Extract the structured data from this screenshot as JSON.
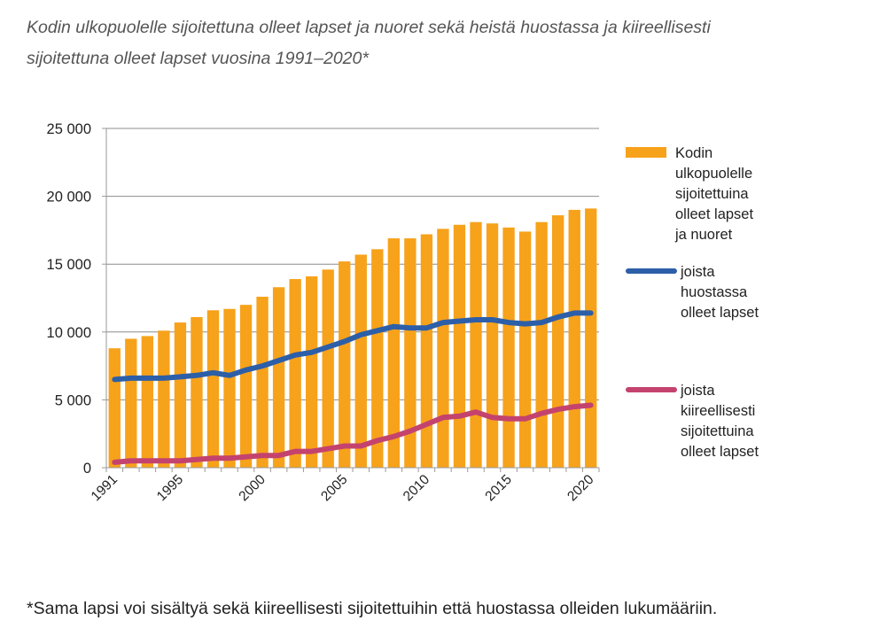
{
  "title_line1": "Kodin ulkopuolelle sijoitettuna olleet lapset ja nuoret sekä heistä huostassa ja kiireellisesti",
  "title_line2": "sijoitettuna olleet lapset vuosina 1991–2020*",
  "footnote": "*Sama lapsi voi sisältyä sekä kiireellisesti sijoitettuihin että huostassa olleiden lukumääriin.",
  "colors": {
    "bar": "#F7A21B",
    "line_custody": "#2D5FA8",
    "line_emergency": "#C4436E",
    "grid": "#8C8C8C",
    "axis": "#9A9A9A"
  },
  "chart_data": {
    "type": "bar",
    "ylim": [
      0,
      25000
    ],
    "yticks": [
      0,
      5000,
      10000,
      15000,
      20000,
      25000
    ],
    "ytick_labels": [
      "0",
      "5 000",
      "10 000",
      "15 000",
      "20 000",
      "25 000"
    ],
    "xtick_labels": [
      "1991",
      "1995",
      "2000",
      "2005",
      "2010",
      "2015",
      "2020"
    ],
    "categories": [
      "1991",
      "1992",
      "1993",
      "1994",
      "1995",
      "1996",
      "1997",
      "1998",
      "1999",
      "2000",
      "2001",
      "2002",
      "2003",
      "2004",
      "2005",
      "2006",
      "2007",
      "2008",
      "2009",
      "2010",
      "2011",
      "2012",
      "2013",
      "2014",
      "2015",
      "2016",
      "2017",
      "2018",
      "2019",
      "2020"
    ],
    "grid": true,
    "legend_position": "right",
    "series": [
      {
        "name": "Kodin ulkopuolelle sijoitettuina olleet lapset ja nuoret",
        "kind": "bar",
        "values": [
          8800,
          9500,
          9700,
          10100,
          10700,
          11100,
          11600,
          11700,
          12000,
          12600,
          13300,
          13900,
          14100,
          14600,
          15200,
          15700,
          16100,
          16900,
          16900,
          17200,
          17600,
          17900,
          18100,
          18000,
          17700,
          17400,
          18100,
          18600,
          19000,
          19100
        ]
      },
      {
        "name": "joista huostassa olleet lapset",
        "kind": "line",
        "values": [
          6500,
          6600,
          6600,
          6600,
          6700,
          6800,
          7000,
          6800,
          7200,
          7500,
          7900,
          8300,
          8500,
          8900,
          9300,
          9800,
          10100,
          10400,
          10300,
          10300,
          10700,
          10800,
          10900,
          10900,
          10700,
          10600,
          10700,
          11100,
          11400,
          11400
        ]
      },
      {
        "name": "joista kiireellisesti sijoitettuina olleet lapset",
        "kind": "line",
        "values": [
          400,
          500,
          500,
          500,
          500,
          600,
          700,
          700,
          800,
          900,
          900,
          1200,
          1200,
          1400,
          1600,
          1600,
          2000,
          2300,
          2700,
          3200,
          3700,
          3800,
          4100,
          3700,
          3600,
          3600,
          4000,
          4300,
          4500,
          4600
        ]
      }
    ]
  },
  "legend": [
    {
      "lines": [
        "Kodin",
        "ulkopuolelle",
        "sijoitettuina",
        "olleet lapset",
        "ja nuoret"
      ]
    },
    {
      "lines": [
        "joista",
        "huostassa",
        "olleet lapset"
      ]
    },
    {
      "lines": [
        "joista",
        "kiireellisesti",
        "sijoitettuina",
        "olleet lapset"
      ]
    }
  ]
}
